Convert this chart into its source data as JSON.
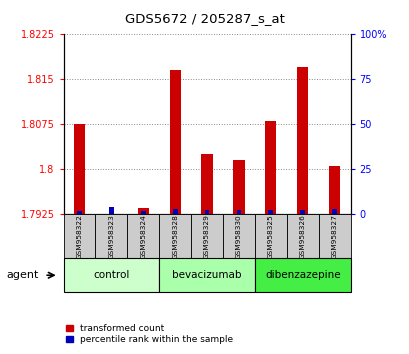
{
  "title": "GDS5672 / 205287_s_at",
  "samples": [
    "GSM958322",
    "GSM958323",
    "GSM958324",
    "GSM958328",
    "GSM958329",
    "GSM958330",
    "GSM958325",
    "GSM958326",
    "GSM958327"
  ],
  "red_values": [
    1.8075,
    1.7925,
    1.7935,
    1.8165,
    1.8025,
    1.8015,
    1.808,
    1.817,
    1.8005
  ],
  "blue_pct": [
    2,
    4,
    2,
    3,
    2.5,
    2.5,
    2.5,
    2.5,
    3
  ],
  "ylim_min": 1.7925,
  "ylim_max": 1.8225,
  "y2lim_min": 0,
  "y2lim_max": 100,
  "yticks": [
    1.7925,
    1.8,
    1.8075,
    1.815,
    1.8225
  ],
  "y2ticks": [
    0,
    25,
    50,
    75,
    100
  ],
  "groups": [
    {
      "label": "control",
      "start": 0,
      "end": 3,
      "color": "#ccffcc"
    },
    {
      "label": "bevacizumab",
      "start": 3,
      "end": 6,
      "color": "#aaffaa"
    },
    {
      "label": "dibenzazepine",
      "start": 6,
      "end": 9,
      "color": "#44ee44"
    }
  ],
  "legend_red": "transformed count",
  "legend_blue": "percentile rank within the sample",
  "agent_label": "agent",
  "red_color": "#cc0000",
  "blue_color": "#0000bb",
  "grid_color": "#888888",
  "sample_bg": "#cccccc",
  "red_bar_width": 0.35,
  "blue_bar_width": 0.15
}
